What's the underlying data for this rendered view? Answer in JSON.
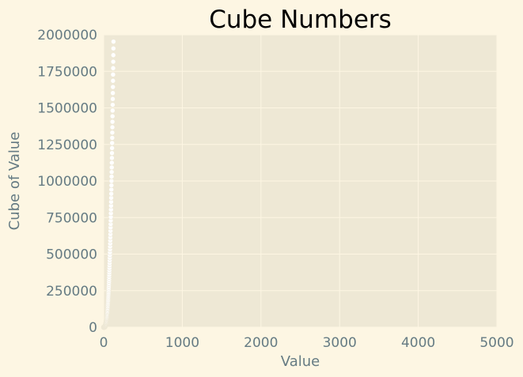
{
  "chart_data": {
    "type": "scatter",
    "title": "Cube Numbers",
    "xlabel": "Value",
    "ylabel": "Cube of Value",
    "xlim": [
      0,
      5000
    ],
    "ylim": [
      0,
      2000000
    ],
    "x_ticks": [
      "0",
      "1000",
      "2000",
      "3000",
      "4000",
      "5000"
    ],
    "y_ticks": [
      "0",
      "250000",
      "500000",
      "750000",
      "1000000",
      "1250000",
      "1500000",
      "1750000",
      "2000000"
    ],
    "x_tick_values": [
      0,
      1000,
      2000,
      3000,
      4000,
      5000
    ],
    "y_tick_values": [
      0,
      250000,
      500000,
      750000,
      1000000,
      1250000,
      1500000,
      1750000,
      2000000
    ],
    "grid": true,
    "legend": "none",
    "series": [
      {
        "x_range": [
          1,
          125
        ],
        "y": "x^3"
      }
    ],
    "colors": {
      "background": "#fdf6e3",
      "plot_area": "#eee8d5",
      "grid": "#fdf6e3",
      "tick_text": "#657b83",
      "title_text": "#000000",
      "marker": "#ffffff",
      "marker_edge": "#eee8d5"
    }
  }
}
